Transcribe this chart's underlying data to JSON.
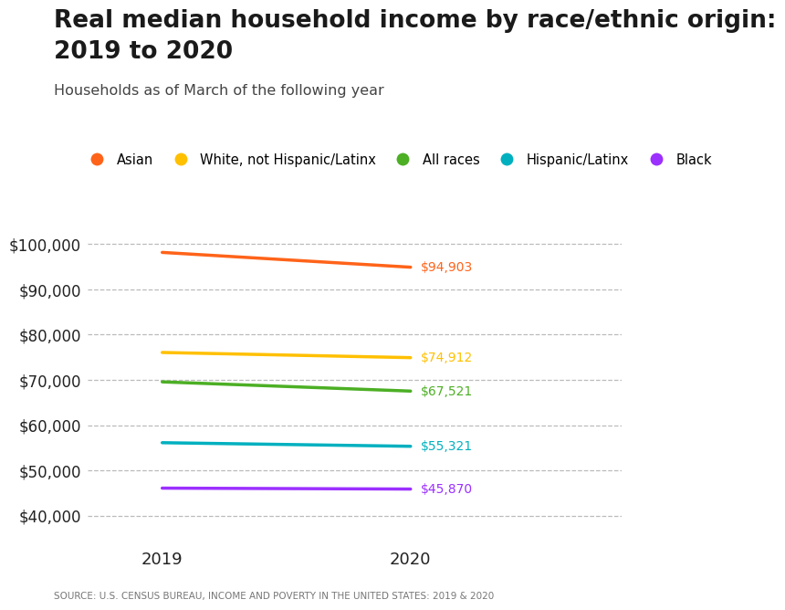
{
  "title_line1": "Real median household income by race/ethnic origin:",
  "title_line2": "2019 to 2020",
  "subtitle": "Households as of March of the following year",
  "source": "SOURCE: U.S. CENSUS BUREAU, INCOME AND POVERTY IN THE UNITED STATES: 2019 & 2020",
  "years": [
    2019,
    2020
  ],
  "series": [
    {
      "label": "Asian",
      "color": "#FF6319",
      "values": [
        98174,
        94903
      ]
    },
    {
      "label": "White, not Hispanic/Latinx",
      "color": "#FFC000",
      "values": [
        76057,
        74912
      ]
    },
    {
      "label": "All races",
      "color": "#4CAF24",
      "values": [
        69560,
        67521
      ]
    },
    {
      "label": "Hispanic/Latinx",
      "color": "#00B0BF",
      "values": [
        56113,
        55321
      ]
    },
    {
      "label": "Black",
      "color": "#9B30FF",
      "values": [
        46073,
        45870
      ]
    }
  ],
  "ylim": [
    35000,
    107000
  ],
  "yticks": [
    40000,
    50000,
    60000,
    70000,
    80000,
    90000,
    100000
  ],
  "background_color": "#FFFFFF",
  "title_fontsize": 19,
  "subtitle_fontsize": 11.5,
  "line_width": 2.5
}
